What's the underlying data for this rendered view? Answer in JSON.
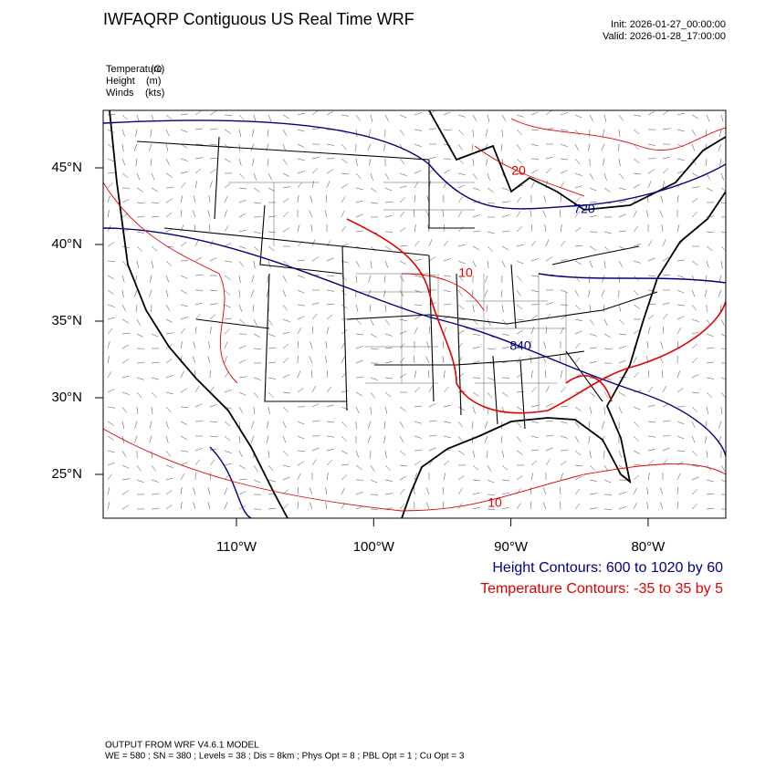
{
  "header": {
    "title": "IWFAQRP Contiguous US Real Time WRF",
    "init": "Init: 2026-01-27_00:00:00",
    "valid": "Valid: 2026-01-28_17:00:00"
  },
  "fields": [
    {
      "name": "Temperature",
      "unit": "(C)"
    },
    {
      "name": "Height",
      "unit": "(m)"
    },
    {
      "name": "Winds",
      "unit": "(kts)"
    }
  ],
  "axes": {
    "lat_labels": [
      {
        "value": 45,
        "label": "45°N"
      },
      {
        "value": 40,
        "label": "40°N"
      },
      {
        "value": 35,
        "label": "35°N"
      },
      {
        "value": 30,
        "label": "30°N"
      },
      {
        "value": 25,
        "label": "25°N"
      }
    ],
    "lon_labels": [
      {
        "value": -110,
        "label": "110°W"
      },
      {
        "value": -100,
        "label": "100°W"
      },
      {
        "value": -90,
        "label": "90°W"
      },
      {
        "value": -80,
        "label": "80°W"
      }
    ]
  },
  "map": {
    "temperature_color": "#e00000",
    "height_color": "#00007f",
    "height_labels": [
      720,
      840
    ],
    "temperature_labels": [
      20,
      10,
      10
    ]
  },
  "legend": {
    "height": "Height Contours: 600 to 1020 by 60",
    "temperature": "Temperature Contours: -35 to 35 by 5"
  },
  "footer": {
    "lines": [
      "OUTPUT FROM WRF V4.6.1 MODEL",
      "WE = 580 ; SN = 380 ; Levels = 38 ; Dis = 8km ; Phys Opt = 8 ; PBL Opt = 1 ; Cu Opt = 3"
    ]
  }
}
